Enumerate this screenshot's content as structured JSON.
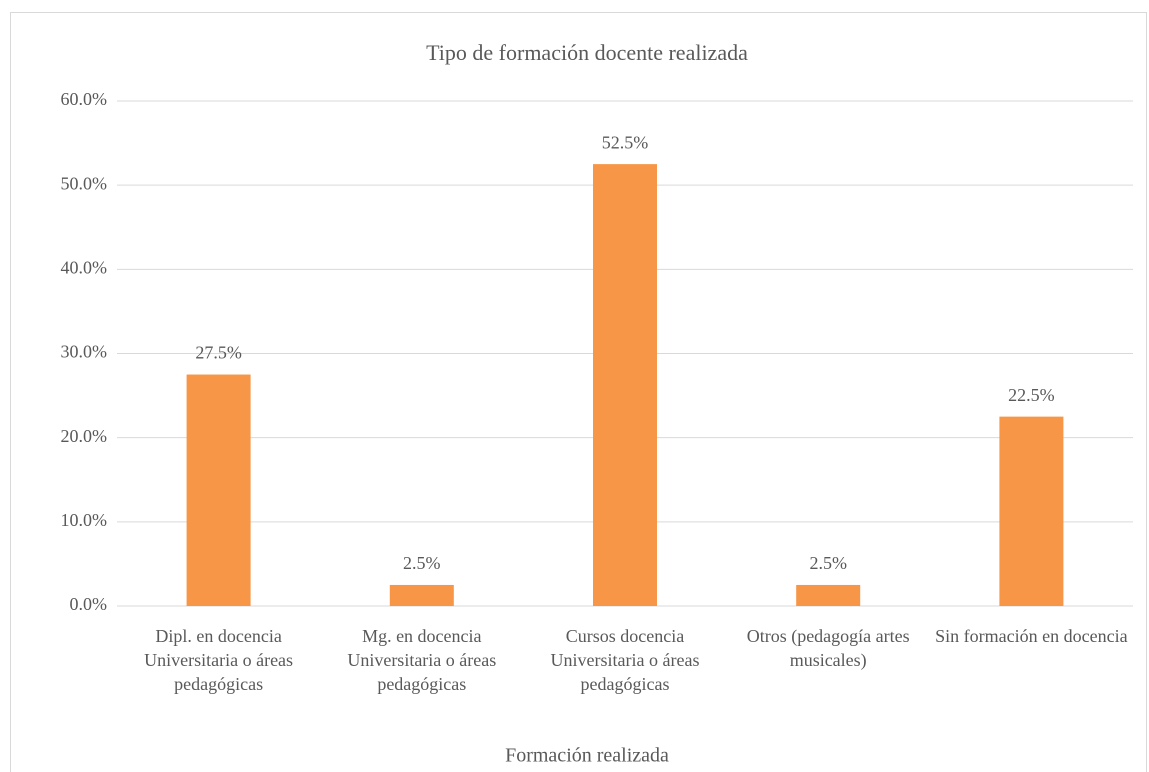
{
  "chart_data": {
    "type": "bar",
    "title": "Tipo de formación docente realizada",
    "x_label": "Formación realizada",
    "categories": [
      "Dipl. en docencia Universitaria o áreas pedagógicas",
      "Mg. en docencia Universitaria o áreas pedagógicas",
      "Cursos docencia Universitaria o áreas pedagógicas",
      "Otros (pedagogía artes musicales)",
      "Sin formación en docencia"
    ],
    "values": [
      27.5,
      2.5,
      52.5,
      2.5,
      22.5
    ],
    "value_labels": [
      "27.5%",
      "2.5%",
      "52.5%",
      "2.5%",
      "22.5%"
    ],
    "color": "#f79646",
    "ylim": [
      0,
      60
    ],
    "yticks": [
      {
        "value": 0,
        "label": "0.0%"
      },
      {
        "value": 10,
        "label": "10.0%"
      },
      {
        "value": 20,
        "label": "20.0%"
      },
      {
        "value": 30,
        "label": "30.0%"
      },
      {
        "value": 40,
        "label": "40.0%"
      },
      {
        "value": 50,
        "label": "50.0%"
      },
      {
        "value": 60,
        "label": "60.0%"
      }
    ],
    "grid": true
  }
}
